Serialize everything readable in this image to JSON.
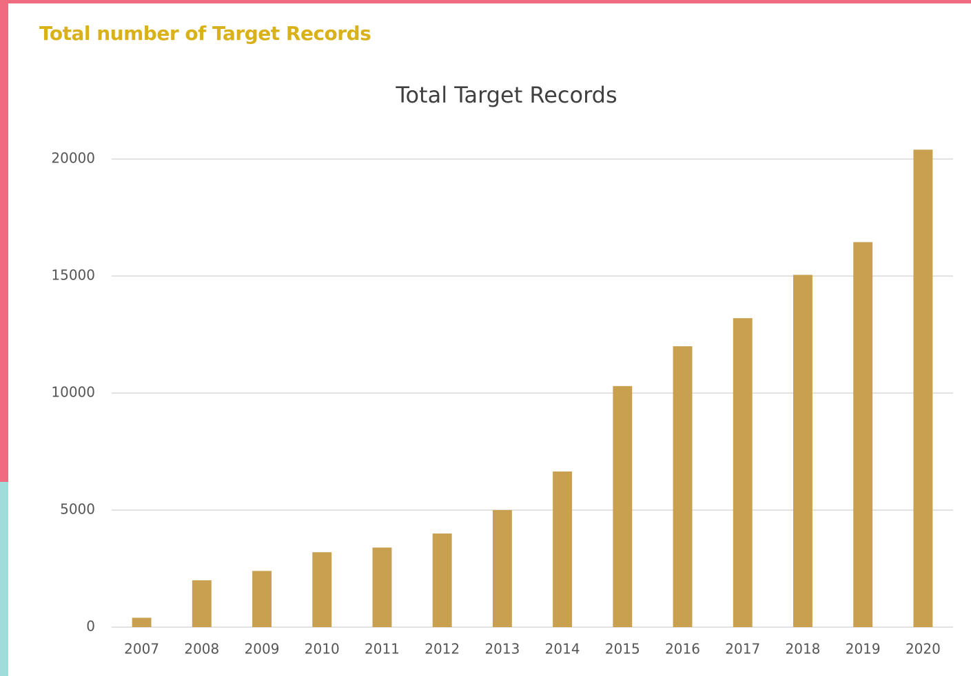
{
  "header": {
    "title": "Total number of Target Records"
  },
  "chart_data": {
    "type": "bar",
    "title": "Total Target Records",
    "categories": [
      "2007",
      "2008",
      "2009",
      "2010",
      "2011",
      "2012",
      "2013",
      "2014",
      "2015",
      "2016",
      "2017",
      "2018",
      "2019",
      "2020"
    ],
    "values": [
      400,
      2000,
      2400,
      3200,
      3400,
      4000,
      5000,
      6650,
      10300,
      12000,
      13200,
      15050,
      16450,
      20400
    ],
    "color": "#c9a050",
    "ylim": [
      0,
      20600
    ],
    "yticks": [
      0,
      5000,
      10000,
      15000,
      20000
    ],
    "grid": true
  }
}
